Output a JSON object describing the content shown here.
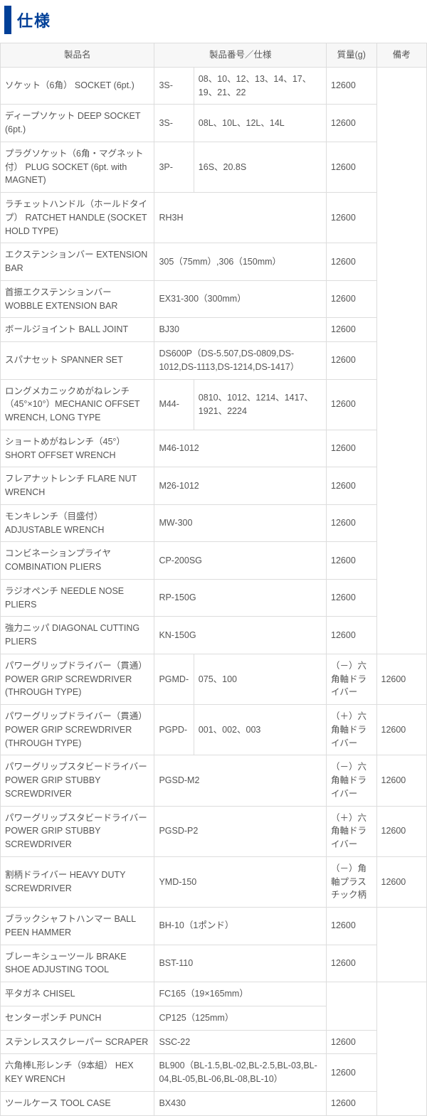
{
  "title": "仕様",
  "headers": {
    "name": "製品名",
    "spec": "製品番号／仕様",
    "mass": "質量(g)",
    "note": "備考"
  },
  "r": [
    {
      "name": "ソケット（6角） SOCKET (6pt.)",
      "code": "3S-",
      "spec": "08、10、12、13、14、17、19、21、22",
      "mass": "12600"
    },
    {
      "name": "ディープソケット DEEP SOCKET (6pt.)",
      "code": "3S-",
      "spec": "08L、10L、12L、14L",
      "mass": "12600"
    },
    {
      "name": "プラグソケット（6角・マグネット付） PLUG SOCKET (6pt. with MAGNET)",
      "code": "3P-",
      "spec": "16S、20.8S",
      "mass": "12600"
    },
    {
      "name": "ラチェットハンドル（ホールドタイプ） RATCHET HANDLE (SOCKET HOLD TYPE)",
      "spec": "RH3H",
      "mass": "12600"
    },
    {
      "name": "エクステンションバー EXTENSION BAR",
      "spec": "305（75mm）,306（150mm）",
      "mass": "12600"
    },
    {
      "name": "首振エクステンションバー WOBBLE EXTENSION BAR",
      "spec": "EX31-300（300mm）",
      "mass": "12600"
    },
    {
      "name": "ボールジョイント BALL JOINT",
      "spec": "BJ30",
      "mass": "12600"
    },
    {
      "name": "スパナセット SPANNER SET",
      "spec": "DS600P（DS-5.507,DS-0809,DS-1012,DS-1113,DS-1214,DS-1417）",
      "mass": "12600"
    },
    {
      "name": "ロングメカニックめがねレンチ（45°×10°）MECHANIC OFFSET WRENCH, LONG TYPE",
      "code": "M44-",
      "spec": "0810、1012、1214、1417、1921、2224",
      "mass": "12600"
    },
    {
      "name": "ショートめがねレンチ（45°） SHORT OFFSET WRENCH",
      "spec": "M46-1012",
      "mass": "12600"
    },
    {
      "name": "フレアナットレンチ FLARE NUT WRENCH",
      "spec": "M26-1012",
      "mass": "12600"
    },
    {
      "name": "モンキレンチ（目盛付） ADJUSTABLE WRENCH",
      "spec": "MW-300",
      "mass": "12600"
    },
    {
      "name": "コンビネーションプライヤ COMBINATION PLIERS",
      "spec": "CP-200SG",
      "mass": "12600"
    },
    {
      "name": "ラジオペンチ NEEDLE NOSE PLIERS",
      "spec": "RP-150G",
      "mass": "12600"
    },
    {
      "name": "強力ニッパ DIAGONAL CUTTING PLIERS",
      "spec": "KN-150G",
      "mass": "12600"
    },
    {
      "name": "パワーグリップドライバー（貫通） POWER GRIP SCREWDRIVER (THROUGH TYPE)",
      "code": "PGMD-",
      "spec": "075、100",
      "mass": "（－）六角軸ドライバー",
      "note": "12600"
    },
    {
      "name": "パワーグリップドライバー（貫通） POWER GRIP SCREWDRIVER (THROUGH TYPE)",
      "code": "PGPD-",
      "spec": "001、002、003",
      "mass": "（＋）六角軸ドライバー",
      "note": "12600"
    },
    {
      "name": "パワーグリップスタビードライバー POWER GRIP STUBBY SCREWDRIVER",
      "spec": "PGSD-M2",
      "mass": "（－）六角軸ドライバー",
      "note": "12600"
    },
    {
      "name": "パワーグリップスタビードライバー POWER GRIP STUBBY SCREWDRIVER",
      "spec": "PGSD-P2",
      "mass": "（＋）六角軸ドライバー",
      "note": "12600"
    },
    {
      "name": "割柄ドライバー HEAVY DUTY SCREWDRIVER",
      "spec": "YMD-150",
      "mass": "（－）角軸プラスチック柄",
      "note": "12600"
    },
    {
      "name": "ブラックシャフトハンマー BALL PEEN HAMMER",
      "spec": "BH-10（1ポンド）",
      "mass": "12600"
    },
    {
      "name": "ブレーキシューツール BRAKE SHOE ADJUSTING TOOL",
      "spec": "BST-110",
      "mass": "12600"
    },
    {
      "name": "平タガネ CHISEL",
      "spec": "FC165（19×165mm）"
    },
    {
      "name": "センターポンチ PUNCH",
      "spec": "CP125（125mm）"
    },
    {
      "name": "ステンレススクレーパー SCRAPER",
      "spec": "SSC-22",
      "mass": "12600"
    },
    {
      "name": "六角棒L形レンチ（9本組） HEX KEY WRENCH",
      "spec": "BL900（BL-1.5,BL-02,BL-2.5,BL-03,BL-04,BL-05,BL-06,BL-08,BL-10）",
      "mass": "12600"
    },
    {
      "name": "ツールケース TOOL CASE",
      "spec": "BX430",
      "mass": "12600"
    }
  ],
  "spans": {
    "noteA_rows": 15,
    "noteB_rows": 2,
    "mass_merge_rows": 2,
    "noteC_rows": 5
  }
}
